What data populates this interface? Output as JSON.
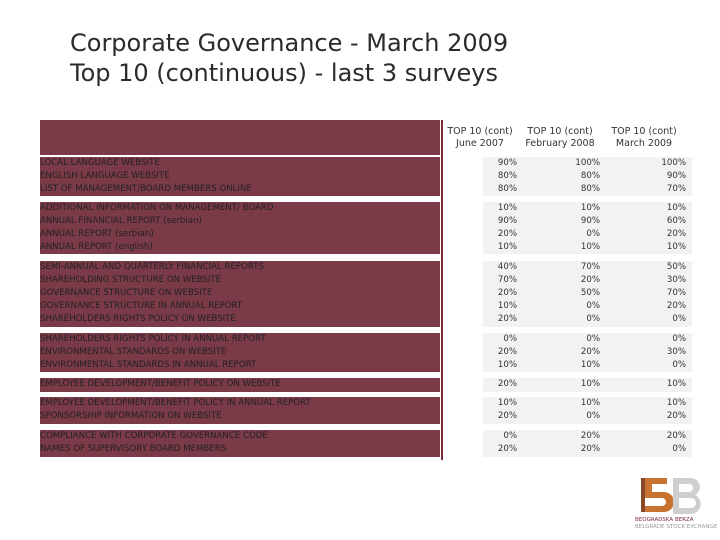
{
  "title": {
    "line1": "Corporate Governance - March 2009",
    "line2": "Top 10 (continuous) - last 3 surveys"
  },
  "columns": [
    {
      "line1": "TOP 10 (cont)",
      "line2": "June 2007"
    },
    {
      "line1": "TOP 10 (cont)",
      "line2": "February 2008"
    },
    {
      "line1": "TOP 10 (cont)",
      "line2": "March 2009"
    }
  ],
  "rows": [
    {
      "label": "LOCAL LANGUAGE  WEBSITE",
      "v": [
        "90%",
        "100%",
        "100%"
      ]
    },
    {
      "label": "ENGLISH LANGUAGE WEBSITE",
      "v": [
        "80%",
        "80%",
        "90%"
      ]
    },
    {
      "label": "LIST OF MANAGEMENT/BOARD MEMBERS ONLINE",
      "v": [
        "80%",
        "80%",
        "70%"
      ]
    },
    {
      "label": "ADDITIONAL INFORMATION ON MANAGEMENT/ BOARD",
      "v": [
        "10%",
        "10%",
        "10%"
      ]
    },
    {
      "label": "ANNUAL FINANCIAL REPORT (serbian)",
      "v": [
        "90%",
        "90%",
        "60%"
      ]
    },
    {
      "label": "ANNUAL REPORT (serbian)",
      "v": [
        "20%",
        "0%",
        "20%"
      ]
    },
    {
      "label": "ANNUAL REPORT (english)",
      "v": [
        "10%",
        "10%",
        "10%"
      ]
    },
    {
      "label": "SEMI-ANNUAL AND QUARTERLY FINANCIAL REPORTS",
      "v": [
        "40%",
        "70%",
        "50%"
      ]
    },
    {
      "label": "SHAREHOLDING STRUCTURE ON WEBSITE",
      "v": [
        "70%",
        "20%",
        "30%"
      ]
    },
    {
      "label": "GOVERNANCE STRUCTURE ON WEBSITE",
      "v": [
        "20%",
        "50%",
        "70%"
      ]
    },
    {
      "label": "GOVERNANCE STRUCTURE IN ANNUAL REPORT",
      "v": [
        "10%",
        "0%",
        "20%"
      ]
    },
    {
      "label": "SHAREHOLDERS RIGHTS POLICY ON WEBSITE",
      "v": [
        "20%",
        "0%",
        "0%"
      ]
    },
    {
      "label": "SHAREHOLDERS RIGHTS POLICY IN ANNUAL REPORT",
      "v": [
        "0%",
        "0%",
        "0%"
      ]
    },
    {
      "label": "ENVIRONMENTAL STANDARDS ON WEBSITE",
      "v": [
        "20%",
        "20%",
        "30%"
      ]
    },
    {
      "label": "ENVIRONMENTAL STANDARDS IN ANNUAL REPORT",
      "v": [
        "10%",
        "10%",
        "0%"
      ]
    },
    {
      "label": "EMPLOYEE DEVELOPMENT/BENEFIT POLICY ON WEBSITE",
      "v": [
        "20%",
        "10%",
        "10%"
      ]
    },
    {
      "label": "EMPLOYEE DEVELOPMENT/BENEFIT POLICY IN ANNUAL REPORT",
      "v": [
        "10%",
        "10%",
        "10%"
      ]
    },
    {
      "label": "SPONSORSHIP INFORMATION ON WEBSITE",
      "v": [
        "20%",
        "0%",
        "20%"
      ]
    },
    {
      "label": "COMPLIANCE WITH CORPORATE GOVERNANCE CODE",
      "v": [
        "0%",
        "20%",
        "20%"
      ]
    },
    {
      "label": "NAMES OF SUPERVISORY BOARD MEMBERS",
      "v": [
        "20%",
        "20%",
        "0%"
      ]
    }
  ],
  "logo": {
    "name": "BEOGRADSKA BERZA",
    "sub": "BELGRADE STOCK EXCHANGE"
  },
  "colors": {
    "band": "#7a3a48",
    "accent": "#c8732f"
  }
}
